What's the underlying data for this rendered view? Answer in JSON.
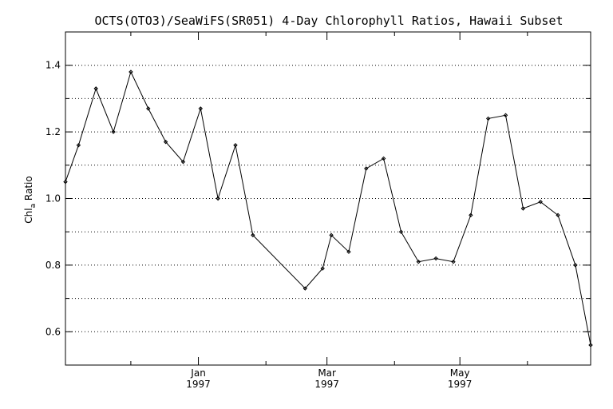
{
  "chart_data": {
    "type": "line",
    "title": "OCTS(OTO3)/SeaWiFS(SR051) 4-Day Chlorophyll Ratios, Hawaii Subset",
    "xlabel": "",
    "ylabel": "Chl_a Ratio",
    "ylabel_main": "Chl",
    "ylabel_sub": "a",
    "ylabel_rest": " Ratio",
    "xlim": [
      "1996-11-01",
      "1997-06-30"
    ],
    "ylim": [
      0.5,
      1.5
    ],
    "grid": "horizontal dotted",
    "yticks": [
      {
        "value": 0.6,
        "label": "0.6"
      },
      {
        "value": 0.8,
        "label": "0.8"
      },
      {
        "value": 1.0,
        "label": "1.0"
      },
      {
        "value": 1.2,
        "label": "1.2"
      },
      {
        "value": 1.4,
        "label": "1.4"
      }
    ],
    "xticks": [
      {
        "date": "1997-01-01",
        "label": "Jan",
        "label2": "1997"
      },
      {
        "date": "1997-03-01",
        "label": "Mar",
        "label2": "1997"
      },
      {
        "date": "1997-05-01",
        "label": "May",
        "label2": "1997"
      }
    ],
    "series": [
      {
        "color": "#000000",
        "points": [
          {
            "x": "1996-11-01",
            "y": 1.05
          },
          {
            "x": "1996-11-07",
            "y": 1.16
          },
          {
            "x": "1996-11-15",
            "y": 1.33
          },
          {
            "x": "1996-11-23",
            "y": 1.2
          },
          {
            "x": "1996-12-01",
            "y": 1.38
          },
          {
            "x": "1996-12-09",
            "y": 1.27
          },
          {
            "x": "1996-12-17",
            "y": 1.17
          },
          {
            "x": "1996-12-25",
            "y": 1.11
          },
          {
            "x": "1997-01-02",
            "y": 1.27
          },
          {
            "x": "1997-01-10",
            "y": 1.0
          },
          {
            "x": "1997-01-18",
            "y": 1.16
          },
          {
            "x": "1997-01-26",
            "y": 0.89
          },
          {
            "x": "1997-02-19",
            "y": 0.73
          },
          {
            "x": "1997-02-27",
            "y": 0.79
          },
          {
            "x": "1997-03-03",
            "y": 0.89
          },
          {
            "x": "1997-03-11",
            "y": 0.84
          },
          {
            "x": "1997-03-19",
            "y": 1.09
          },
          {
            "x": "1997-03-27",
            "y": 1.12
          },
          {
            "x": "1997-04-04",
            "y": 0.9
          },
          {
            "x": "1997-04-12",
            "y": 0.81
          },
          {
            "x": "1997-04-20",
            "y": 0.82
          },
          {
            "x": "1997-04-28",
            "y": 0.81
          },
          {
            "x": "1997-05-06",
            "y": 0.95
          },
          {
            "x": "1997-05-14",
            "y": 1.24
          },
          {
            "x": "1997-05-22",
            "y": 1.25
          },
          {
            "x": "1997-05-30",
            "y": 0.97
          },
          {
            "x": "1997-06-07",
            "y": 0.99
          },
          {
            "x": "1997-06-15",
            "y": 0.95
          },
          {
            "x": "1997-06-23",
            "y": 0.8
          },
          {
            "x": "1997-06-30",
            "y": 0.56
          }
        ]
      }
    ]
  }
}
